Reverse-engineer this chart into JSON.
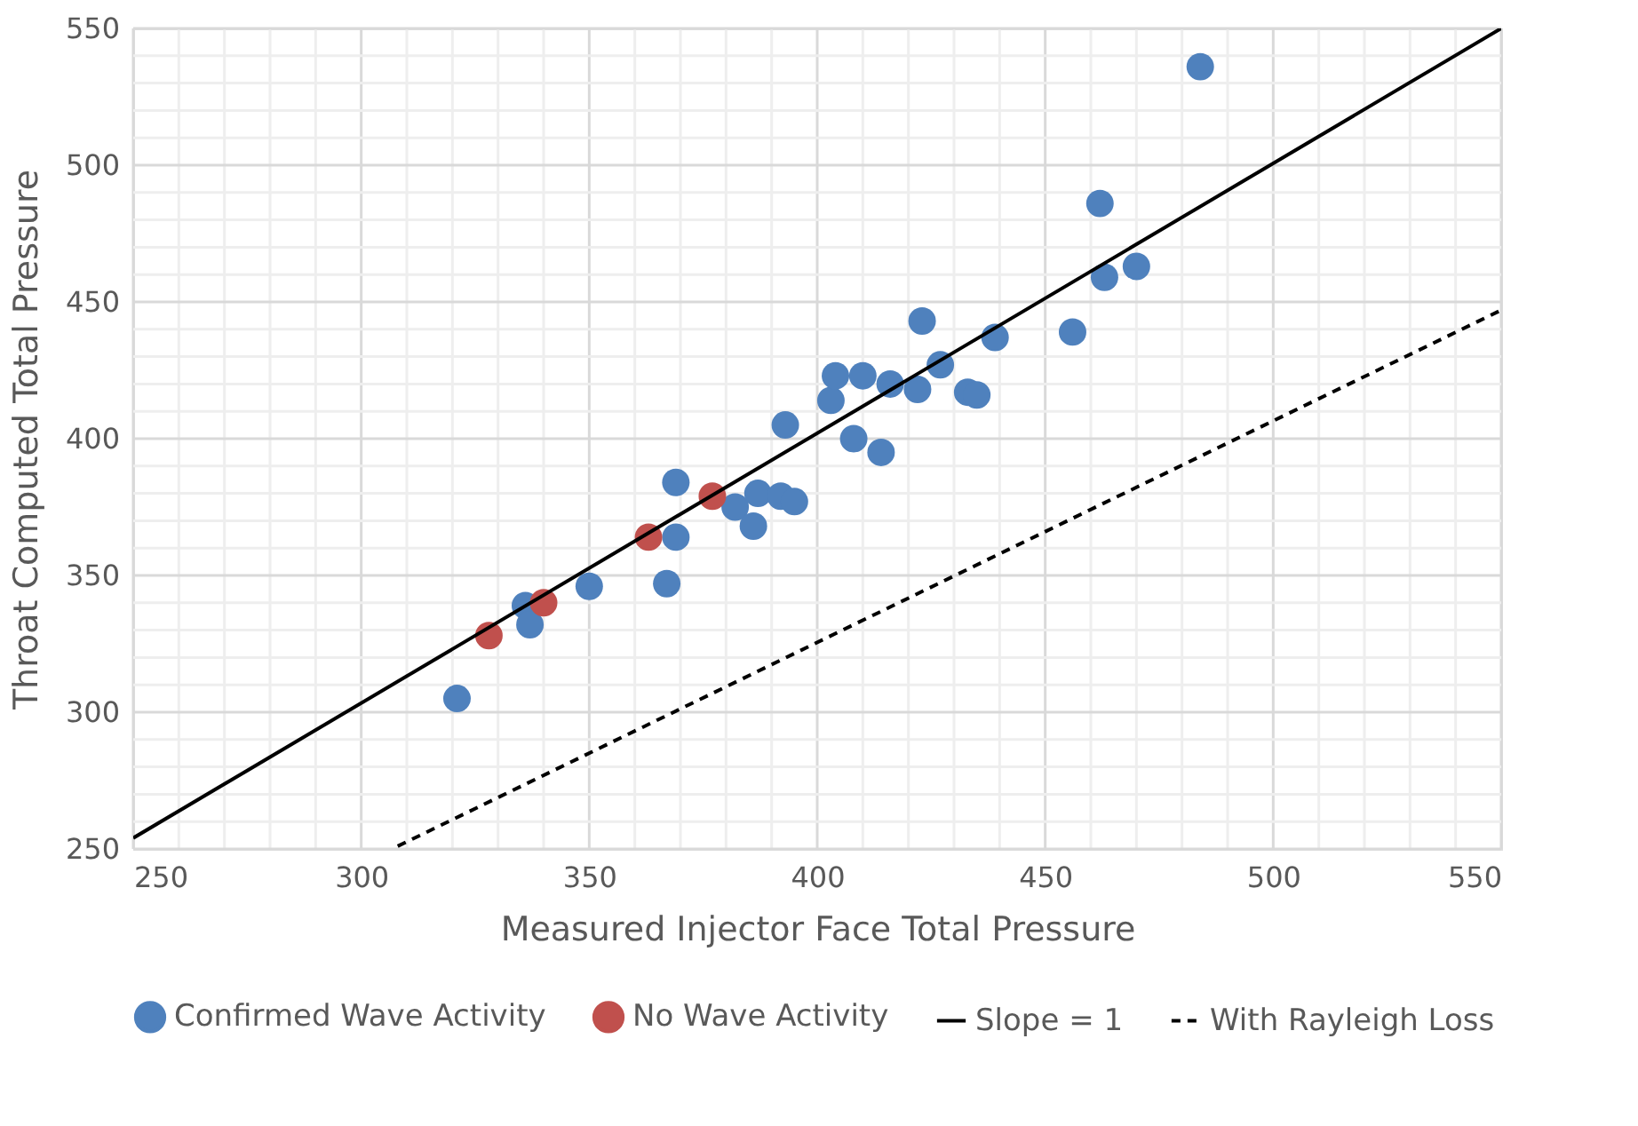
{
  "chart_data": {
    "type": "scatter",
    "xlabel": "Measured Injector Face Total Pressure",
    "ylabel": "Throat Computed Total Pressure",
    "xlim": [
      250,
      550
    ],
    "ylim": [
      250,
      550
    ],
    "xticks": [
      250,
      {
        "value": 260,
        "label": null
      },
      {
        "value": 270,
        "label": null
      },
      {
        "value": 280,
        "label": null
      },
      {
        "value": 290,
        "label": null
      },
      300,
      {
        "value": 310,
        "label": null
      },
      {
        "value": 320,
        "label": null
      },
      {
        "value": 330,
        "label": null
      },
      {
        "value": 340,
        "label": null
      },
      350,
      {
        "value": 360,
        "label": null
      },
      {
        "value": 370,
        "label": null
      },
      {
        "value": 380,
        "label": null
      },
      {
        "value": 390,
        "label": null
      },
      400,
      {
        "value": 410,
        "label": null
      },
      {
        "value": 420,
        "label": null
      },
      {
        "value": 430,
        "label": null
      },
      {
        "value": 440,
        "label": null
      },
      450,
      {
        "value": 460,
        "label": null
      },
      {
        "value": 470,
        "label": null
      },
      {
        "value": 480,
        "label": null
      },
      {
        "value": 490,
        "label": null
      },
      500,
      {
        "value": 510,
        "label": null
      },
      {
        "value": 520,
        "label": null
      },
      {
        "value": 530,
        "label": null
      },
      {
        "value": 540,
        "label": null
      },
      550
    ],
    "yticks": [
      250,
      {
        "value": 260,
        "label": null
      },
      {
        "value": 270,
        "label": null
      },
      {
        "value": 280,
        "label": null
      },
      {
        "value": 290,
        "label": null
      },
      300,
      {
        "value": 310,
        "label": null
      },
      {
        "value": 320,
        "label": null
      },
      {
        "value": 330,
        "label": null
      },
      {
        "value": 340,
        "label": null
      },
      350,
      {
        "value": 360,
        "label": null
      },
      {
        "value": 370,
        "label": null
      },
      {
        "value": 380,
        "label": null
      },
      {
        "value": 390,
        "label": null
      },
      400,
      {
        "value": 410,
        "label": null
      },
      {
        "value": 420,
        "label": null
      },
      {
        "value": 430,
        "label": null
      },
      {
        "value": 440,
        "label": null
      },
      450,
      {
        "value": 460,
        "label": null
      },
      {
        "value": 470,
        "label": null
      },
      {
        "value": 480,
        "label": null
      },
      {
        "value": 490,
        "label": null
      },
      500,
      {
        "value": 510,
        "label": null
      },
      {
        "value": 520,
        "label": null
      },
      {
        "value": 530,
        "label": null
      },
      {
        "value": 540,
        "label": null
      },
      550
    ],
    "grid": true,
    "legend": "bottom",
    "series": [
      {
        "name": "Confirmed Wave Activity",
        "color": "#4f81bd",
        "marker": "circle",
        "x": [
          321,
          336,
          337,
          350,
          367,
          369,
          369,
          382,
          386,
          387,
          392,
          395,
          393,
          403,
          404,
          408,
          410,
          414,
          416,
          422,
          423,
          427,
          433,
          435,
          439,
          456,
          462,
          463,
          470,
          484
        ],
        "values": [
          305,
          339,
          332,
          346,
          347,
          384,
          364,
          375,
          368,
          380,
          379,
          377,
          405,
          414,
          423,
          400,
          423,
          395,
          420,
          418,
          443,
          427,
          417,
          416,
          437,
          439,
          486,
          459,
          463,
          536
        ]
      },
      {
        "name": "No Wave Activity",
        "color": "#c0504d",
        "marker": "circle",
        "x": [
          328,
          340,
          363,
          377
        ],
        "values": [
          328,
          340,
          364,
          379
        ]
      },
      {
        "name": "Slope = 1",
        "color": "#000000",
        "type": "line",
        "line_style": "solid",
        "x": [
          250,
          550
        ],
        "values": [
          254,
          550
        ]
      },
      {
        "name": "With Rayleigh Loss",
        "color": "#000000",
        "type": "line",
        "line_style": "dashed",
        "x": [
          308,
          550
        ],
        "values": [
          251,
          447
        ]
      }
    ]
  }
}
